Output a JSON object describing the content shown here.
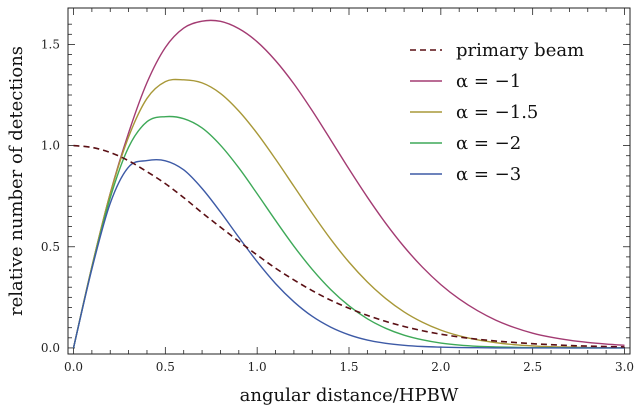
{
  "chart_data": {
    "type": "line",
    "xlabel": "angular distance/HPBW",
    "ylabel": "relative number of detections",
    "xlim": [
      -0.03,
      3.03
    ],
    "ylim": [
      -0.03,
      1.68
    ],
    "x_ticks": [
      0.0,
      0.5,
      1.0,
      1.5,
      2.0,
      2.5,
      3.0
    ],
    "x_tick_labels": [
      "0.0",
      "0.5",
      "1.0",
      "1.5",
      "2.0",
      "2.5",
      "3.0"
    ],
    "y_ticks": [
      0.0,
      0.5,
      1.0,
      1.5
    ],
    "y_tick_labels": [
      "0.0",
      "0.5",
      "1.0",
      "1.5"
    ],
    "grid": false,
    "legend_position": "top-right",
    "x": [
      0.0,
      0.1,
      0.2,
      0.3,
      0.4,
      0.5,
      0.6,
      0.7,
      0.8,
      0.9,
      1.0,
      1.1,
      1.2,
      1.3,
      1.4,
      1.5,
      1.6,
      1.7,
      1.8,
      1.9,
      2.0,
      2.1,
      2.2,
      2.3,
      2.4,
      2.5,
      2.6,
      2.7,
      2.8,
      2.9,
      3.0
    ],
    "series": [
      {
        "name": "primary beam",
        "color": "#5a0f14",
        "dash": true,
        "values": [
          1.0,
          0.991,
          0.966,
          0.925,
          0.871,
          0.812,
          0.743,
          0.668,
          0.597,
          0.527,
          0.459,
          0.394,
          0.336,
          0.283,
          0.236,
          0.196,
          0.161,
          0.131,
          0.106,
          0.085,
          0.068,
          0.054,
          0.043,
          0.034,
          0.027,
          0.021,
          0.016,
          0.012,
          0.009,
          0.007,
          0.005
        ]
      },
      {
        "name": "α = −1",
        "color": "#a33b72",
        "dash": false,
        "values": [
          0.0,
          0.401,
          0.764,
          1.063,
          1.311,
          1.485,
          1.581,
          1.615,
          1.614,
          1.578,
          1.513,
          1.42,
          1.305,
          1.172,
          1.029,
          0.884,
          0.745,
          0.616,
          0.5,
          0.399,
          0.313,
          0.242,
          0.184,
          0.137,
          0.101,
          0.073,
          0.053,
          0.038,
          0.027,
          0.019,
          0.013
        ]
      },
      {
        "name": "α = −1.5",
        "color": "#a89838",
        "dash": false,
        "values": [
          0.0,
          0.402,
          0.762,
          1.043,
          1.233,
          1.316,
          1.325,
          1.31,
          1.258,
          1.171,
          1.06,
          0.933,
          0.799,
          0.665,
          0.538,
          0.424,
          0.326,
          0.244,
          0.178,
          0.127,
          0.088,
          0.06,
          0.04,
          0.026,
          0.016,
          0.01,
          0.006,
          0.004,
          0.002,
          0.001,
          0.001
        ]
      },
      {
        "name": "α = −2",
        "color": "#3ea958",
        "dash": false,
        "values": [
          0.0,
          0.395,
          0.742,
          0.992,
          1.118,
          1.143,
          1.133,
          1.087,
          1.002,
          0.89,
          0.762,
          0.63,
          0.503,
          0.388,
          0.289,
          0.208,
          0.144,
          0.097,
          0.063,
          0.04,
          0.024,
          0.014,
          0.008,
          0.005,
          0.003,
          0.001,
          0.001,
          0.0,
          0.0,
          0.0,
          0.0
        ]
      },
      {
        "name": "α = −3",
        "color": "#3d5aa6",
        "dash": false,
        "values": [
          0.0,
          0.39,
          0.715,
          0.894,
          0.926,
          0.925,
          0.88,
          0.788,
          0.672,
          0.547,
          0.426,
          0.318,
          0.228,
          0.156,
          0.103,
          0.065,
          0.039,
          0.023,
          0.013,
          0.007,
          0.004,
          0.002,
          0.001,
          0.0,
          0.0,
          0.0,
          0.0,
          0.0,
          0.0,
          0.0,
          0.0
        ]
      }
    ]
  }
}
